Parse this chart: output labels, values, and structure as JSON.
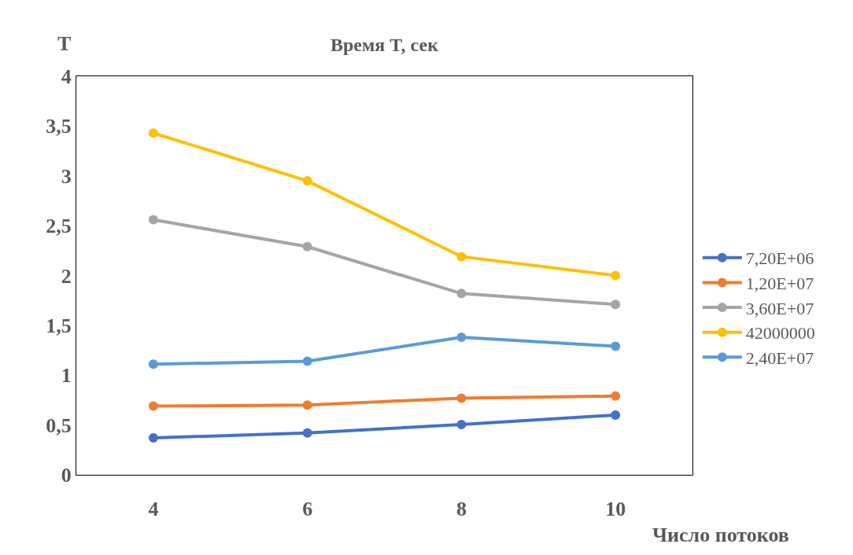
{
  "chart_data": {
    "type": "line",
    "title": "Время T, сек",
    "xlabel": "Число потоков",
    "ylabel": "T",
    "categories": [
      "4",
      "6",
      "8",
      "10"
    ],
    "series": [
      {
        "name": "7,20E+06",
        "color": "#4472c4",
        "values": [
          0.37,
          0.42,
          0.505,
          0.6
        ]
      },
      {
        "name": "1,20E+07",
        "color": "#ed7d31",
        "values": [
          0.69,
          0.7,
          0.77,
          0.79
        ]
      },
      {
        "name": "3,60E+07",
        "color": "#a5a5a5",
        "values": [
          2.56,
          2.29,
          1.82,
          1.71
        ]
      },
      {
        "name": "42000000",
        "color": "#ffc000",
        "values": [
          3.43,
          2.95,
          2.19,
          2.0
        ]
      },
      {
        "name": "2,40E+07",
        "color": "#5b9bd5",
        "values": [
          1.11,
          1.14,
          1.38,
          1.29
        ]
      }
    ],
    "ylim": [
      0,
      4
    ],
    "yticks": [
      0,
      {
        "value": 0.5,
        "label": "0,5"
      },
      1,
      {
        "value": 1.5,
        "label": "1,5"
      },
      2,
      {
        "value": 2.5,
        "label": "2,5"
      },
      3,
      {
        "value": 3.5,
        "label": "3,5"
      },
      4
    ],
    "legend": "right",
    "marker": "circle",
    "line_style": "solid"
  }
}
